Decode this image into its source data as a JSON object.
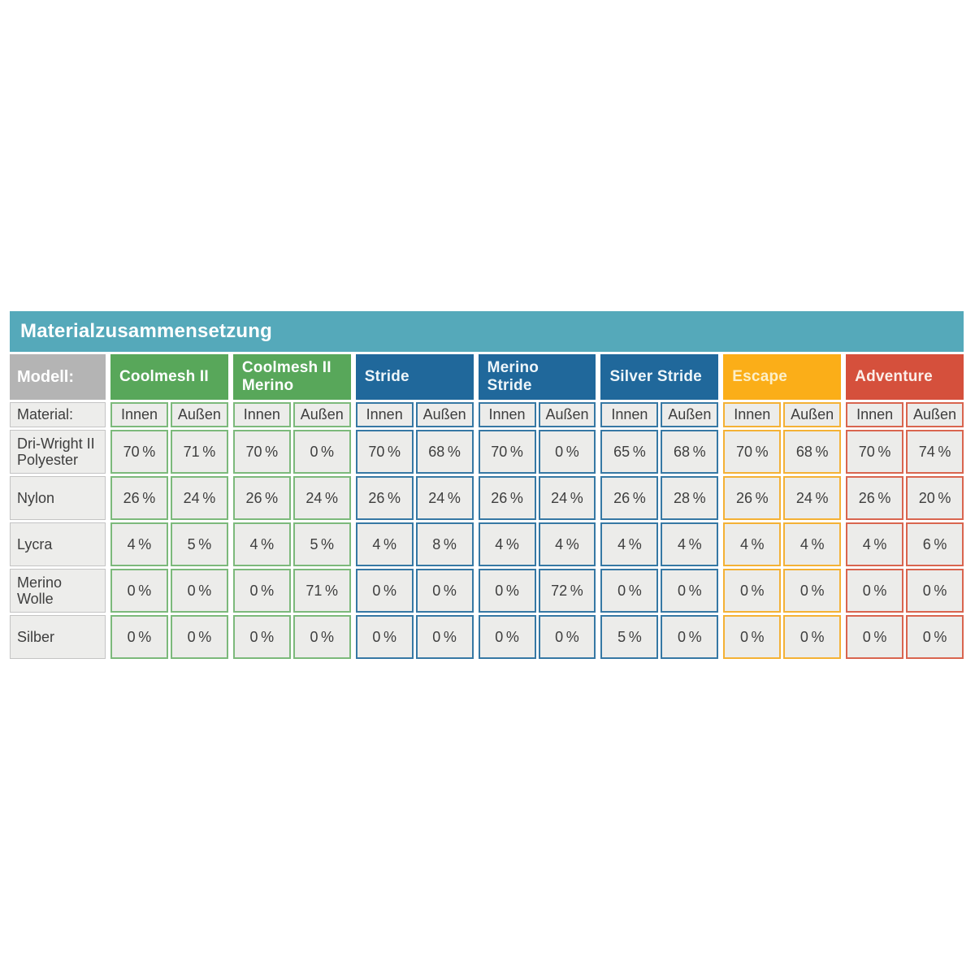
{
  "table": {
    "title": "Materialzusammensetzung",
    "title_bar_color": "#55A9BA",
    "title_text_color": "#FFFFFF",
    "header_label": "Modell:",
    "header_label_bg": "#B4B4B4",
    "material_label": "Material:",
    "inner_label": "Innen",
    "outer_label": "Außen",
    "row_labels": [
      "Dri-Wright II Polyester",
      "Nylon",
      "Lycra",
      "Merino Wolle",
      "Silber"
    ],
    "cell_bg": "#ECECEA",
    "label_cell_bg": "#EDEDEB",
    "label_border_color": "#C4C4C4",
    "value_text_color": "#3E3E3E",
    "groups": [
      {
        "name": "Coolmesh II",
        "color": "#58A75A",
        "border": "#7CB97B",
        "text": "#FFFFFF",
        "innen": [
          "70 %",
          "26 %",
          "4 %",
          "0 %",
          "0 %"
        ],
        "aussen": [
          "71 %",
          "24 %",
          "5 %",
          "0 %",
          "0 %"
        ]
      },
      {
        "name": "Coolmesh II Merino",
        "color": "#58A75A",
        "border": "#7CB97B",
        "text": "#FFFFFF",
        "innen": [
          "70 %",
          "26 %",
          "4 %",
          "0 %",
          "0 %"
        ],
        "aussen": [
          "0 %",
          "24 %",
          "5 %",
          "71 %",
          "0 %"
        ]
      },
      {
        "name": "Stride",
        "color": "#20689B",
        "border": "#3678A4",
        "text": "#EDF5F9",
        "innen": [
          "70 %",
          "26 %",
          "4 %",
          "0 %",
          "0 %"
        ],
        "aussen": [
          "68 %",
          "24 %",
          "8 %",
          "0 %",
          "0 %"
        ]
      },
      {
        "name": "Merino Stride",
        "color": "#20689B",
        "border": "#3678A4",
        "text": "#EDF5F9",
        "innen": [
          "70 %",
          "26 %",
          "4 %",
          "0 %",
          "0 %"
        ],
        "aussen": [
          "0 %",
          "24 %",
          "4 %",
          "72 %",
          "0 %"
        ]
      },
      {
        "name": "Silver Stride",
        "color": "#20689B",
        "border": "#3678A4",
        "text": "#EDF5F9",
        "innen": [
          "65 %",
          "26 %",
          "4 %",
          "0 %",
          "5 %"
        ],
        "aussen": [
          "68 %",
          "28 %",
          "4 %",
          "0 %",
          "0 %"
        ]
      },
      {
        "name": "Escape",
        "color": "#FBAE18",
        "border": "#F4B135",
        "text": "#FCEFC8",
        "innen": [
          "70 %",
          "26 %",
          "4 %",
          "0 %",
          "0 %"
        ],
        "aussen": [
          "68 %",
          "24 %",
          "4 %",
          "0 %",
          "0 %"
        ]
      },
      {
        "name": "Adventure",
        "color": "#D5503C",
        "border": "#D9654F",
        "text": "#FBEEE9",
        "innen": [
          "70 %",
          "26 %",
          "4 %",
          "0 %",
          "0 %"
        ],
        "aussen": [
          "74 %",
          "20 %",
          "6 %",
          "0 %",
          "0 %"
        ]
      }
    ]
  },
  "chart_data": {
    "type": "table",
    "title": "Materialzusammensetzung",
    "column_header": "Modell:",
    "row_header": "Material:",
    "sub_columns": [
      "Innen",
      "Außen"
    ],
    "rows": [
      "Dri-Wright II Polyester",
      "Nylon",
      "Lycra",
      "Merino Wolle",
      "Silber"
    ],
    "unit": "%",
    "columns": [
      {
        "model": "Coolmesh II",
        "innen": [
          70,
          26,
          4,
          0,
          0
        ],
        "aussen": [
          71,
          24,
          5,
          0,
          0
        ]
      },
      {
        "model": "Coolmesh II Merino",
        "innen": [
          70,
          26,
          4,
          0,
          0
        ],
        "aussen": [
          0,
          24,
          5,
          71,
          0
        ]
      },
      {
        "model": "Stride",
        "innen": [
          70,
          26,
          4,
          0,
          0
        ],
        "aussen": [
          68,
          24,
          8,
          0,
          0
        ]
      },
      {
        "model": "Merino Stride",
        "innen": [
          70,
          26,
          4,
          0,
          0
        ],
        "aussen": [
          0,
          24,
          4,
          72,
          0
        ]
      },
      {
        "model": "Silver Stride",
        "innen": [
          65,
          26,
          4,
          0,
          5
        ],
        "aussen": [
          68,
          28,
          4,
          0,
          0
        ]
      },
      {
        "model": "Escape",
        "innen": [
          70,
          26,
          4,
          0,
          0
        ],
        "aussen": [
          68,
          24,
          4,
          0,
          0
        ]
      },
      {
        "model": "Adventure",
        "innen": [
          70,
          26,
          4,
          0,
          0
        ],
        "aussen": [
          74,
          20,
          6,
          0,
          0
        ]
      }
    ]
  }
}
